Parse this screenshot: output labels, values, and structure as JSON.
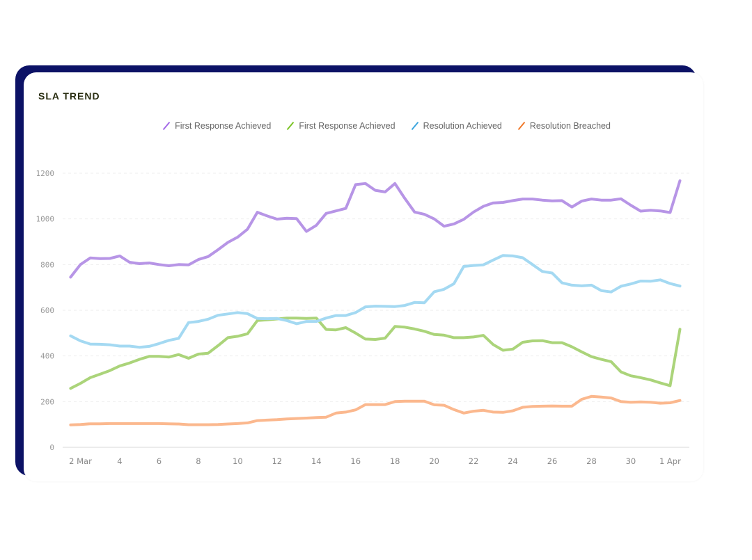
{
  "card": {
    "title": "SLA TREND"
  },
  "colors": {
    "frame": "#0c1266"
  },
  "chart_data": {
    "type": "line",
    "title": "",
    "xlabel": "",
    "ylabel": "",
    "ylim": [
      0,
      1200
    ],
    "yticks": [
      "0",
      "200",
      "400",
      "600",
      "800",
      "1000",
      "1200"
    ],
    "grid": true,
    "legend_position": "top",
    "xticks": [
      {
        "label": "2 Mar",
        "date": "Mar 2"
      },
      {
        "label": "4",
        "date": "Mar 4"
      },
      {
        "label": "6",
        "date": "Mar 6"
      },
      {
        "label": "8",
        "date": "Mar 8"
      },
      {
        "label": "10",
        "date": "Mar 10"
      },
      {
        "label": "12",
        "date": "Mar 12"
      },
      {
        "label": "14",
        "date": "Mar 14"
      },
      {
        "label": "16",
        "date": "Mar 16"
      },
      {
        "label": "18",
        "date": "Mar 18"
      },
      {
        "label": "20",
        "date": "Mar 20"
      },
      {
        "label": "22",
        "date": "Mar 22"
      },
      {
        "label": "24",
        "date": "Mar 24"
      },
      {
        "label": "26",
        "date": "Mar 26"
      },
      {
        "label": "28",
        "date": "Mar 28"
      },
      {
        "label": "30",
        "date": "Mar 30"
      },
      {
        "label": "1 Apr",
        "date": "Apr 1"
      }
    ],
    "x": [
      "Mar 1 12:00",
      "Mar 2 00:00",
      "Mar 2 12:00",
      "Mar 3 00:00",
      "Mar 3 12:00",
      "Mar 4 00:00",
      "Mar 4 12:00",
      "Mar 5 00:00",
      "Mar 5 12:00",
      "Mar 6 00:00",
      "Mar 6 12:00",
      "Mar 7 00:00",
      "Mar 7 12:00",
      "Mar 8 00:00",
      "Mar 8 12:00",
      "Mar 9 00:00",
      "Mar 9 12:00",
      "Mar 10 00:00",
      "Mar 10 12:00",
      "Mar 11 00:00",
      "Mar 11 12:00",
      "Mar 12 00:00",
      "Mar 12 12:00",
      "Mar 13 00:00",
      "Mar 13 12:00",
      "Mar 14 00:00",
      "Mar 14 12:00",
      "Mar 15 00:00",
      "Mar 15 12:00",
      "Mar 16 00:00",
      "Mar 16 12:00",
      "Mar 17 00:00",
      "Mar 17 12:00",
      "Mar 18 00:00",
      "Mar 18 12:00",
      "Mar 19 00:00",
      "Mar 19 12:00",
      "Mar 20 00:00",
      "Mar 20 12:00",
      "Mar 21 00:00",
      "Mar 21 12:00",
      "Mar 22 00:00",
      "Mar 22 12:00",
      "Mar 23 00:00",
      "Mar 23 12:00",
      "Mar 24 00:00",
      "Mar 24 12:00",
      "Mar 25 00:00",
      "Mar 25 12:00",
      "Mar 26 00:00",
      "Mar 26 12:00",
      "Mar 27 00:00",
      "Mar 27 12:00",
      "Mar 28 00:00",
      "Mar 28 12:00",
      "Mar 29 00:00",
      "Mar 29 12:00",
      "Mar 30 00:00",
      "Mar 30 12:00",
      "Mar 31 00:00",
      "Mar 31 12:00",
      "Apr 1 00:00",
      "Apr 1 12:00"
    ],
    "series": [
      {
        "name": "First Response Achieved",
        "color": "#b795e6",
        "legend_color": "#a46be8",
        "values": [
          745,
          800,
          829,
          826,
          827,
          838,
          810,
          804,
          807,
          800,
          795,
          800,
          799,
          822,
          835,
          865,
          897,
          920,
          955,
          1029,
          1013,
          999,
          1003,
          1001,
          945,
          972,
          1024,
          1035,
          1046,
          1150,
          1155,
          1125,
          1118,
          1155,
          1090,
          1030,
          1020,
          1000,
          968,
          978,
          998,
          1030,
          1055,
          1070,
          1072,
          1080,
          1087,
          1087,
          1082,
          1079,
          1080,
          1052,
          1078,
          1087,
          1082,
          1082,
          1088,
          1060,
          1034,
          1038,
          1035,
          1028,
          1167
        ]
      },
      {
        "name": "First Response Achieved",
        "color": "#abd47a",
        "legend_color": "#7cc427",
        "values": [
          258,
          280,
          305,
          320,
          336,
          356,
          369,
          385,
          398,
          398,
          395,
          406,
          390,
          408,
          412,
          445,
          480,
          486,
          497,
          555,
          558,
          562,
          566,
          566,
          564,
          566,
          516,
          514,
          524,
          500,
          474,
          472,
          478,
          529,
          526,
          518,
          508,
          494,
          491,
          480,
          480,
          483,
          490,
          450,
          425,
          430,
          460,
          466,
          467,
          458,
          458,
          440,
          418,
          397,
          385,
          375,
          330,
          313,
          305,
          295,
          282,
          270,
          517
        ]
      },
      {
        "name": "Resolution Achieved",
        "color": "#a4d9f2",
        "legend_color": "#3da6de",
        "values": [
          488,
          466,
          452,
          451,
          449,
          443,
          443,
          438,
          442,
          454,
          468,
          477,
          546,
          551,
          561,
          578,
          584,
          590,
          585,
          564,
          563,
          564,
          555,
          541,
          551,
          551,
          566,
          577,
          577,
          590,
          615,
          618,
          617,
          616,
          621,
          634,
          633,
          681,
          692,
          716,
          792,
          796,
          799,
          820,
          840,
          838,
          830,
          800,
          770,
          763,
          720,
          710,
          707,
          710,
          686,
          680,
          705,
          715,
          728,
          727,
          733,
          717,
          706
        ]
      },
      {
        "name": "Resolution Breached",
        "color": "#fbb88e",
        "legend_color": "#f07a2c",
        "values": [
          98,
          100,
          103,
          103,
          104,
          104,
          104,
          104,
          104,
          104,
          103,
          102,
          99,
          99,
          99,
          100,
          102,
          104,
          107,
          117,
          119,
          121,
          124,
          126,
          128,
          130,
          132,
          150,
          154,
          164,
          187,
          187,
          187,
          200,
          202,
          202,
          202,
          186,
          184,
          165,
          150,
          158,
          162,
          154,
          153,
          160,
          175,
          179,
          180,
          181,
          180,
          180,
          210,
          223,
          220,
          216,
          200,
          197,
          199,
          197,
          193,
          195,
          205
        ]
      }
    ]
  }
}
